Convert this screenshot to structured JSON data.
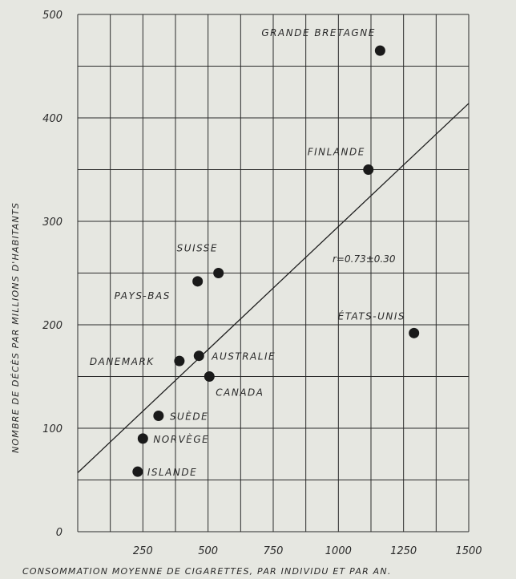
{
  "chart_data": {
    "type": "scatter",
    "title": "",
    "xlabel": "CONSOMMATION MOYENNE DE CIGARETTES, PAR INDIVIDU ET PAR AN.",
    "ylabel": "NOMBRE DE DÉCÈS PAR MILLIONS D'HABITANTS",
    "xlim": [
      0,
      1500
    ],
    "ylim": [
      0,
      500
    ],
    "xticks": [
      250,
      500,
      750,
      1000,
      1250,
      1500
    ],
    "yticks": [
      0,
      100,
      200,
      300,
      400,
      500
    ],
    "x_grid_step": 125,
    "y_grid_step": 50,
    "grid": true,
    "points": [
      {
        "label": "GRANDE BRETAGNE",
        "x": 1160,
        "y": 465
      },
      {
        "label": "FINLANDE",
        "x": 1115,
        "y": 350
      },
      {
        "label": "SUISSE",
        "x": 540,
        "y": 250
      },
      {
        "label": "PAYS-BAS",
        "x": 460,
        "y": 242
      },
      {
        "label": "ÉTATS-UNIS",
        "x": 1290,
        "y": 192
      },
      {
        "label": "AUSTRALIE",
        "x": 465,
        "y": 170
      },
      {
        "label": "DANEMARK",
        "x": 390,
        "y": 165
      },
      {
        "label": "CANADA",
        "x": 505,
        "y": 150
      },
      {
        "label": "SUÈDE",
        "x": 310,
        "y": 112
      },
      {
        "label": "NORVÈGE",
        "x": 250,
        "y": 90
      },
      {
        "label": "ISLANDE",
        "x": 230,
        "y": 58
      }
    ],
    "regression_line": {
      "x": [
        0,
        1500
      ],
      "y": [
        57,
        414
      ]
    },
    "annotation": "r=0.73±0.30"
  }
}
